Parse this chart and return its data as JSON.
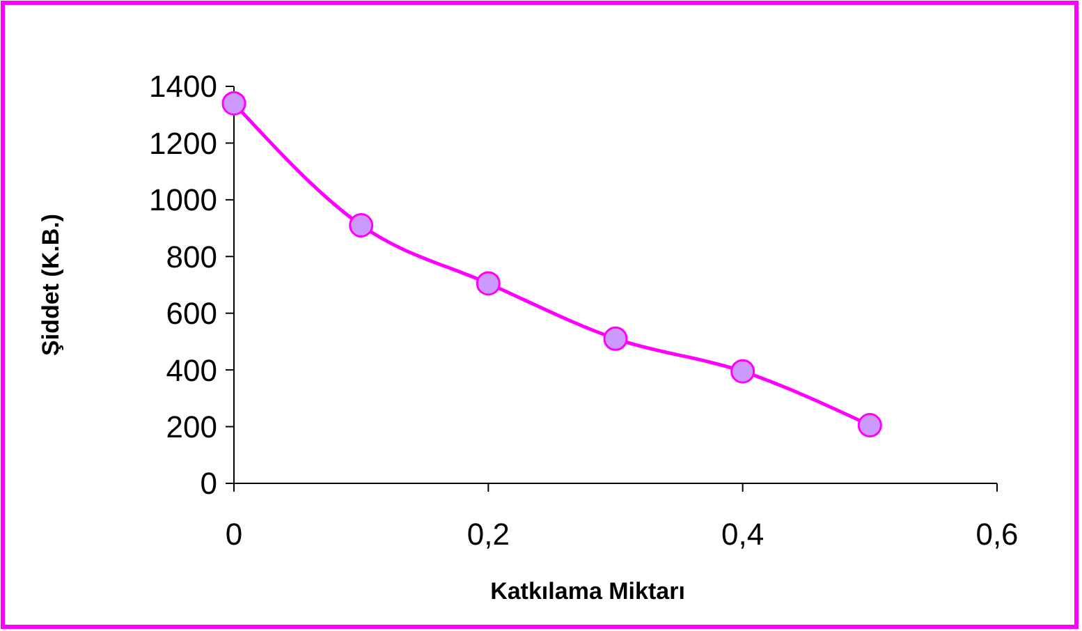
{
  "chart_data": {
    "type": "line",
    "xlabel": "Katkılama Miktarı",
    "ylabel": "Şiddet (K.B.)",
    "x": [
      0,
      0.1,
      0.2,
      0.3,
      0.4,
      0.5
    ],
    "series": [
      {
        "color": "#ff00ff",
        "values": [
          1340,
          910,
          705,
          510,
          395,
          205
        ]
      }
    ],
    "xlim": [
      0,
      0.6
    ],
    "xticks": [
      0,
      {
        "value": 0.2,
        "label": "0,2"
      },
      {
        "value": 0.4,
        "label": "0,4"
      },
      {
        "value": 0.6,
        "label": "0,6"
      }
    ],
    "ylim": [
      0,
      1400
    ],
    "yticks": [
      0,
      200,
      400,
      600,
      800,
      1000,
      1200,
      1400
    ],
    "grid": false,
    "marker": "circle",
    "line_style": "solid"
  }
}
